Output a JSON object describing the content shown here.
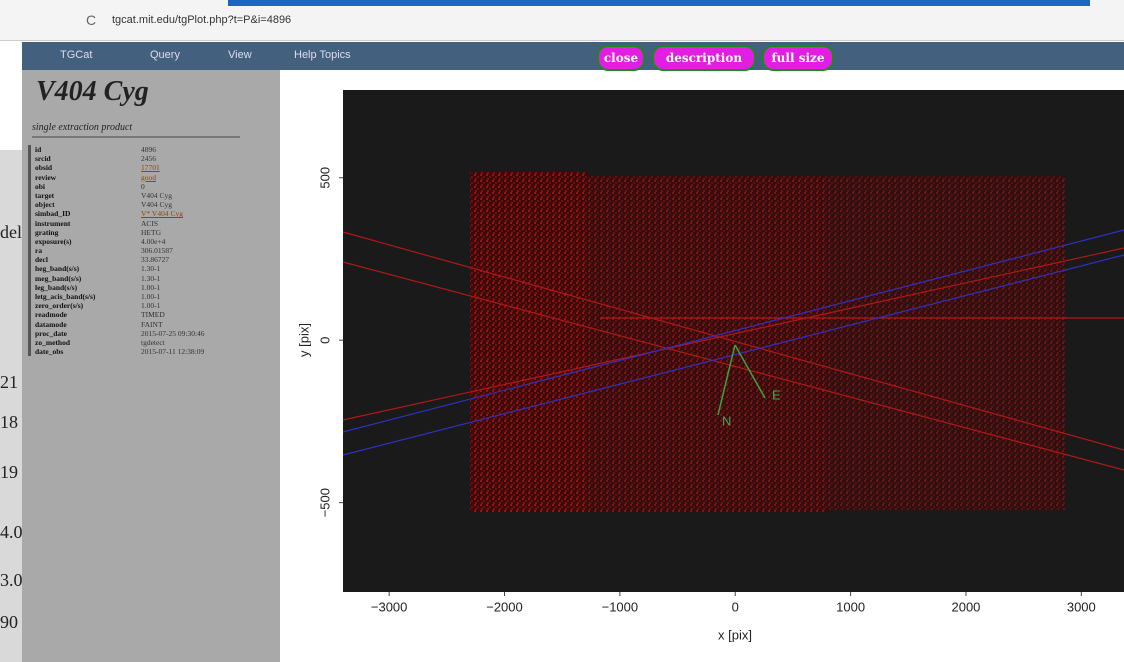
{
  "browser": {
    "url": "tgcat.mit.edu/tgPlot.php?t=P&i=4896"
  },
  "nav": {
    "items": [
      "TGCat",
      "Query",
      "View",
      "Help Topics"
    ],
    "buttons": [
      "close",
      "description",
      "full size"
    ]
  },
  "sidebar": {
    "title": "V404 Cyg",
    "subtitle": "single extraction product",
    "rows": [
      [
        "id",
        "4896"
      ],
      [
        "srcid",
        "2456"
      ],
      [
        "obsid",
        "17701"
      ],
      [
        "review",
        "good"
      ],
      [
        "obi",
        "0"
      ],
      [
        "target",
        "V404 Cyg"
      ],
      [
        "object",
        "V404 Cyg"
      ],
      [
        "simbad_ID",
        "V* V404 Cyg"
      ],
      [
        "instrument",
        "ACIS"
      ],
      [
        "grating",
        "HETG"
      ],
      [
        "exposure(s)",
        "4.00e+4"
      ],
      [
        "ra",
        "306.01587"
      ],
      [
        "decl",
        "33.86727"
      ],
      [
        "heg_band(s/s)",
        "1.30-1"
      ],
      [
        "meg_band(s/s)",
        "1.30-1"
      ],
      [
        "leg_band(s/s)",
        "1.00-1"
      ],
      [
        "letg_acis_band(s/s)",
        "1.00-1"
      ],
      [
        "zero_order(s/s)",
        "1.00-1"
      ],
      [
        "readmode",
        "TIMED"
      ],
      [
        "datamode",
        "FAINT"
      ],
      [
        "proc_date",
        "2015-07-25 09:30:46"
      ],
      [
        "zo_method",
        "tgdetect"
      ],
      [
        "date_obs",
        "2015-07-11 12:38:09"
      ]
    ]
  },
  "background_fragments": [
    "del",
    "21",
    "18",
    "19",
    "4.0",
    "3.0",
    "90"
  ],
  "plot": {
    "x_label": "x [pix]",
    "y_label": "y [pix]",
    "xlim": [
      -3400,
      3370
    ],
    "ylim": [
      -775,
      770
    ],
    "xticks": [
      {
        "value": -3000,
        "label": "−3000"
      },
      {
        "value": -2000,
        "label": "−2000"
      },
      {
        "value": -1000,
        "label": "−1000"
      },
      0,
      1000,
      2000,
      3000
    ],
    "yticks": [
      {
        "value": -500,
        "label": "−500"
      },
      0,
      500
    ],
    "compass": {
      "north": "N",
      "east": "E"
    }
  }
}
